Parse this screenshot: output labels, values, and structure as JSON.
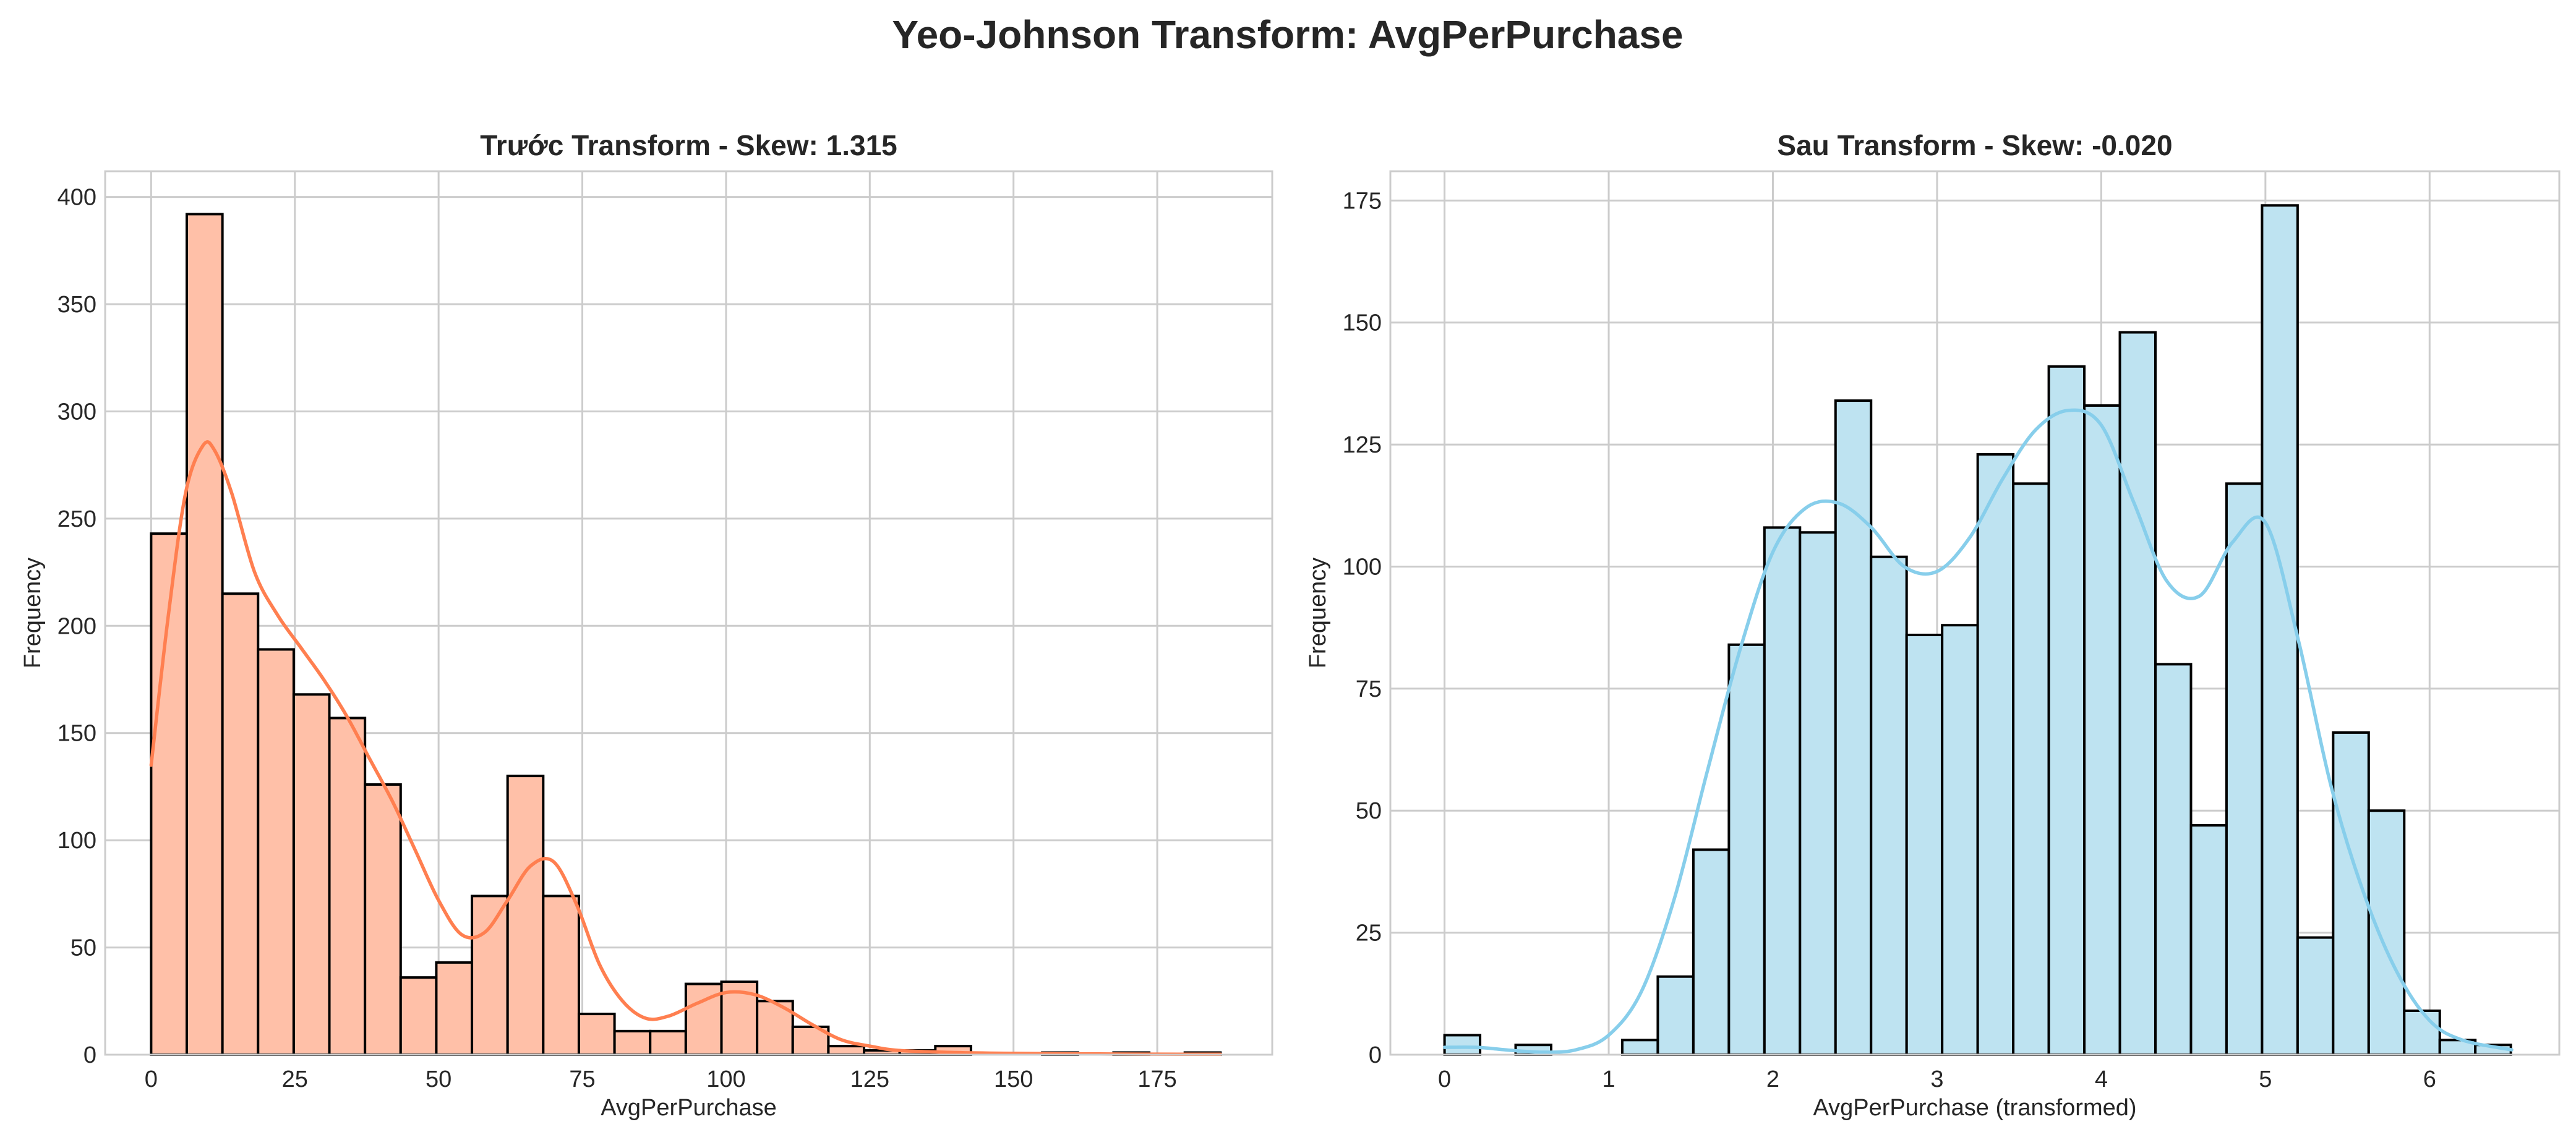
{
  "figure": {
    "suptitle": "Yeo-Johnson Transform: AvgPerPurchase"
  },
  "chart_data": [
    {
      "type": "bar",
      "title": "Trước Transform - Skew: 1.315",
      "xlabel": "AvgPerPurchase",
      "ylabel": "Frequency",
      "xlim": [
        -8,
        195
      ],
      "ylim": [
        0,
        412
      ],
      "xticks": [
        0,
        25,
        50,
        75,
        100,
        125,
        150,
        175
      ],
      "yticks": [
        0,
        50,
        100,
        150,
        200,
        250,
        300,
        350,
        400
      ],
      "grid": true,
      "bar_color": "#FFC0A8",
      "line_color": "#FF7F50",
      "bin_edges": [
        0,
        6.2,
        12.4,
        18.6,
        24.8,
        31.0,
        37.2,
        43.4,
        49.6,
        55.8,
        62.0,
        68.2,
        74.4,
        80.6,
        86.8,
        93.0,
        99.2,
        105.4,
        111.6,
        117.8,
        124.0,
        130.2,
        136.4,
        142.6,
        148.8,
        155.0,
        161.2,
        167.4,
        173.6,
        179.8,
        186.0
      ],
      "counts": [
        243,
        392,
        215,
        189,
        168,
        157,
        126,
        36,
        43,
        74,
        130,
        74,
        19,
        11,
        11,
        33,
        34,
        25,
        13,
        4,
        2,
        2,
        4,
        0,
        0,
        1,
        0,
        1,
        0,
        1
      ],
      "kde": {
        "x": [
          0,
          3,
          6,
          9,
          11,
          14,
          18,
          22,
          26,
          30,
          34,
          38,
          42,
          46,
          50,
          54,
          58,
          62,
          66,
          70,
          74,
          78,
          82,
          86,
          90,
          95,
          100,
          105,
          110,
          115,
          120,
          125,
          130,
          140,
          150,
          160,
          170,
          180,
          186
        ],
        "y": [
          135,
          205,
          262,
          284,
          282,
          262,
          225,
          205,
          190,
          175,
          158,
          138,
          118,
          95,
          72,
          56,
          57,
          72,
          88,
          90,
          70,
          42,
          25,
          17,
          18,
          24,
          29,
          28,
          22,
          14,
          7,
          4,
          2,
          1,
          0.6,
          0.4,
          0.3,
          0.2,
          0.2
        ]
      }
    },
    {
      "type": "bar",
      "title": "Sau Transform - Skew: -0.020",
      "xlabel": "AvgPerPurchase (transformed)",
      "ylabel": "Frequency",
      "xlim": [
        -0.33,
        6.79
      ],
      "ylim": [
        0,
        181
      ],
      "xticks": [
        0,
        1,
        2,
        3,
        4,
        5,
        6
      ],
      "yticks": [
        0,
        25,
        50,
        75,
        100,
        125,
        150,
        175
      ],
      "grid": true,
      "bar_color": "#BEE3F1",
      "line_color": "#87CEEB",
      "bin_edges": [
        0,
        0.2165,
        0.433,
        0.6495,
        0.866,
        1.0825,
        1.299,
        1.5155,
        1.732,
        1.9485,
        2.165,
        2.3815,
        2.598,
        2.8145,
        3.031,
        3.2475,
        3.464,
        3.6805,
        3.897,
        4.1135,
        4.33,
        4.5465,
        4.763,
        4.9795,
        5.196,
        5.4125,
        5.629,
        5.8455,
        6.062,
        6.2785,
        6.495
      ],
      "counts": [
        4,
        0,
        2,
        0,
        0,
        3,
        16,
        42,
        84,
        108,
        107,
        134,
        102,
        86,
        88,
        123,
        117,
        141,
        133,
        148,
        80,
        47,
        117,
        174,
        24,
        66,
        50,
        9,
        3,
        2
      ],
      "kde": {
        "x": [
          0,
          0.2,
          0.4,
          0.6,
          0.8,
          1.0,
          1.2,
          1.4,
          1.6,
          1.8,
          2.0,
          2.2,
          2.4,
          2.6,
          2.8,
          3.0,
          3.2,
          3.4,
          3.6,
          3.8,
          4.0,
          4.2,
          4.4,
          4.6,
          4.8,
          5.0,
          5.2,
          5.4,
          5.6,
          5.8,
          6.0,
          6.2,
          6.5
        ],
        "y": [
          1.5,
          1.5,
          0.9,
          0.5,
          1.0,
          4,
          13,
          32,
          58,
          83,
          103,
          112,
          113,
          108,
          100,
          99,
          106,
          118,
          128,
          132,
          129,
          113,
          97,
          94,
          105,
          109,
          85,
          55,
          33,
          17,
          7,
          3,
          1
        ]
      }
    }
  ]
}
